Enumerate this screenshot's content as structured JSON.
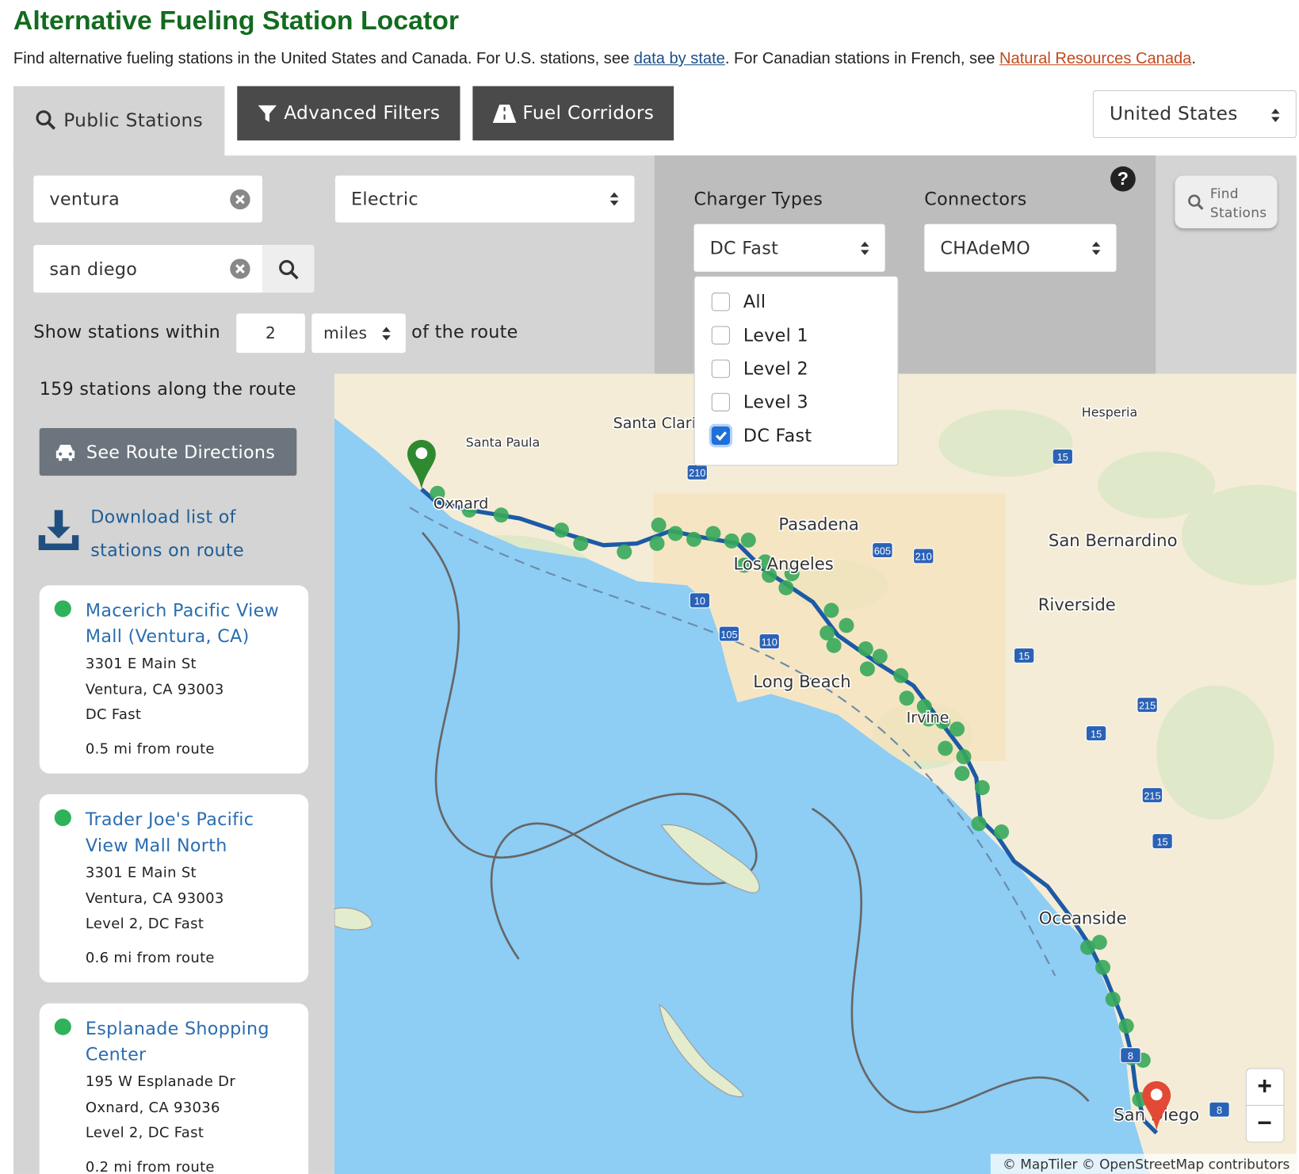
{
  "header": {
    "title": "Alternative Fueling Station Locator",
    "intro": {
      "text1": "Find alternative fueling stations in the United States and Canada. For U.S. stations, see ",
      "link1": "data by state",
      "text2": ". For Canadian stations in French, see ",
      "link2": "Natural Resources Canada",
      "text3": "."
    }
  },
  "tabs": [
    "Public Stations",
    "Advanced Filters",
    "Fuel Corridors"
  ],
  "country": "United States",
  "form": {
    "from": "ventura",
    "to": "san diego",
    "fuel": "Electric",
    "within_prefix": "Show stations within",
    "distance": "2",
    "unit": "miles",
    "within_suffix": "of the route"
  },
  "filters": {
    "charger_label": "Charger Types",
    "charger_value": "DC Fast",
    "connectors_label": "Connectors",
    "connectors_value": "CHAdeMO",
    "help": "?",
    "find": "Find Stations",
    "options": [
      {
        "label": "All",
        "checked": false
      },
      {
        "label": "Level 1",
        "checked": false
      },
      {
        "label": "Level 2",
        "checked": false
      },
      {
        "label": "Level 3",
        "checked": false
      },
      {
        "label": "DC Fast",
        "checked": true
      }
    ]
  },
  "results": {
    "count": "159 stations along the route",
    "directions": "See Route Directions",
    "download": "Download list of stations on route",
    "stations": [
      {
        "name": "Macerich Pacific View Mall (Ventura, CA)",
        "address": "3301 E Main St",
        "city": "Ventura, CA 93003",
        "types": "DC Fast",
        "distance": "0.5 mi from route"
      },
      {
        "name": "Trader Joe's Pacific View Mall North",
        "address": "3301 E Main St",
        "city": "Ventura, CA 93003",
        "types": "Level 2, DC Fast",
        "distance": "0.6 mi from route"
      },
      {
        "name": "Esplanade Shopping Center",
        "address": "195 W Esplanade Dr",
        "city": "Oxnard, CA 93036",
        "types": "Level 2, DC Fast",
        "distance": "0.2 mi from route"
      }
    ]
  },
  "map": {
    "places": [
      "Santa Paula",
      "Oxnard",
      "Santa Clarita",
      "Pasadena",
      "Los Angeles",
      "Long Beach",
      "Irvine",
      "Hesperia",
      "San Bernardino",
      "Riverside",
      "Oceanside",
      "San Diego"
    ],
    "shields": [
      "210",
      "605",
      "210",
      "10",
      "105",
      "110",
      "15",
      "15",
      "215",
      "15",
      "215",
      "15",
      "8",
      "8"
    ],
    "zoom_in": "+",
    "zoom_out": "−",
    "attribution": "© MapTiler © OpenStreetMap contributors"
  }
}
